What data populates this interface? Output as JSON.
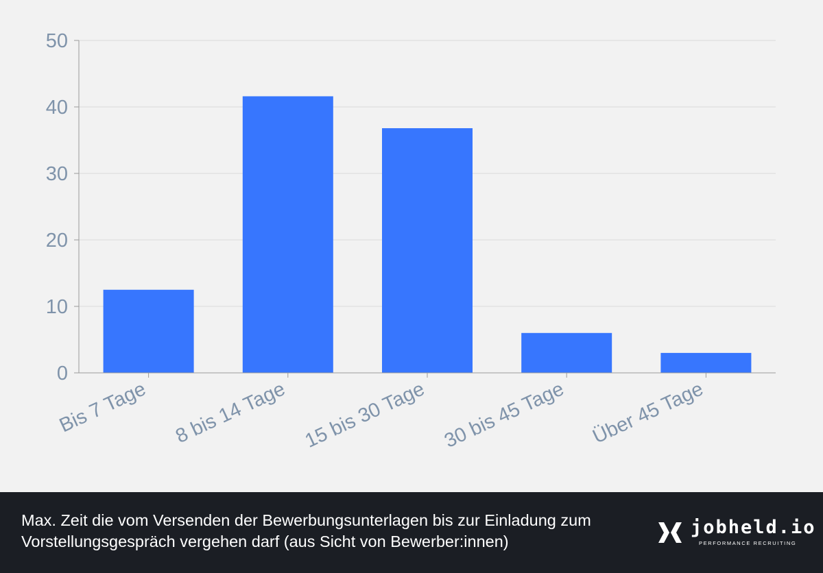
{
  "chart_data": {
    "type": "bar",
    "categories": [
      "Bis 7 Tage",
      "8 bis 14 Tage",
      "15 bis 30 Tage",
      "30 bis 45 Tage",
      "Über 45 Tage"
    ],
    "values": [
      12.5,
      41.6,
      36.8,
      6.0,
      3.0
    ],
    "title": "",
    "xlabel": "",
    "ylabel": "",
    "ylim": [
      0,
      50
    ],
    "yticks": [
      0,
      10,
      20,
      30,
      40,
      50
    ],
    "grid": true,
    "bar_color": "#3776fe",
    "tick_color": "#7f93aa"
  },
  "footer": {
    "caption": "Max. Zeit die vom Versenden der Bewerbungsunterlagen bis zur Einladung zum Vorstellungsgespräch vergehen darf (aus Sicht von Bewerber:innen)"
  },
  "brand": {
    "name": "jobheld.io",
    "tagline": "PERFORMANCE RECRUITING",
    "logo_icon": "jobheld-logo-icon"
  }
}
